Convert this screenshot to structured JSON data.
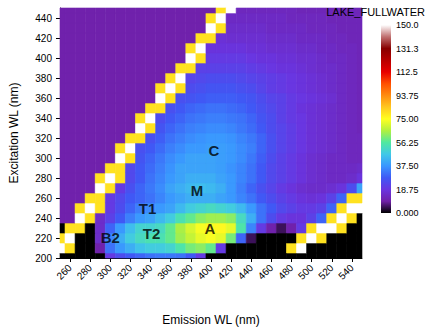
{
  "chart_data": {
    "type": "heatmap",
    "title": "LAKE_FULLWATER",
    "x_label": "Emission WL (nm)",
    "y_label": "Excitation WL (nm)",
    "xlim": [
      250,
      550
    ],
    "ylim": [
      200,
      450
    ],
    "xticks": [
      260,
      280,
      300,
      320,
      340,
      360,
      380,
      400,
      420,
      440,
      460,
      480,
      500,
      520,
      540
    ],
    "yticks": [
      200,
      220,
      240,
      260,
      280,
      300,
      320,
      340,
      360,
      380,
      400,
      420,
      440
    ],
    "x": [
      250,
      260,
      270,
      280,
      290,
      300,
      310,
      320,
      330,
      340,
      350,
      360,
      370,
      380,
      390,
      400,
      410,
      420,
      430,
      440,
      450,
      460,
      470,
      480,
      490,
      500,
      510,
      520,
      530,
      540,
      550
    ],
    "y": [
      200,
      210,
      220,
      230,
      240,
      250,
      260,
      270,
      280,
      290,
      300,
      310,
      320,
      330,
      340,
      350,
      360,
      370,
      380,
      390,
      400,
      410,
      420,
      430,
      440,
      450
    ],
    "values": [
      [
        0,
        0,
        0,
        0,
        0,
        20,
        25,
        28,
        30,
        32,
        33,
        33,
        32,
        28,
        20,
        0,
        0,
        0,
        0,
        0,
        0,
        0,
        0,
        0,
        0,
        0,
        0,
        0,
        0,
        0,
        0
      ],
      [
        150,
        80,
        0,
        0,
        10,
        32,
        38,
        42,
        46,
        48,
        48,
        50,
        55,
        60,
        62,
        58,
        20,
        0,
        0,
        0,
        0,
        0,
        0,
        80,
        150,
        0,
        0,
        0,
        0,
        0,
        0
      ],
      [
        80,
        150,
        0,
        0,
        15,
        35,
        42,
        48,
        52,
        54,
        54,
        58,
        64,
        68,
        72,
        74,
        72,
        60,
        30,
        5,
        0,
        0,
        0,
        0,
        80,
        150,
        80,
        0,
        0,
        0,
        0
      ],
      [
        0,
        80,
        80,
        0,
        15,
        30,
        38,
        45,
        50,
        50,
        52,
        58,
        65,
        70,
        74,
        76,
        76,
        72,
        55,
        35,
        20,
        10,
        5,
        10,
        20,
        80,
        150,
        150,
        80,
        0,
        0
      ],
      [
        10,
        10,
        150,
        80,
        15,
        22,
        28,
        34,
        38,
        40,
        44,
        48,
        54,
        58,
        62,
        64,
        64,
        62,
        52,
        42,
        32,
        25,
        20,
        18,
        18,
        22,
        30,
        80,
        150,
        80,
        0
      ],
      [
        10,
        10,
        80,
        150,
        80,
        20,
        25,
        30,
        34,
        36,
        38,
        40,
        44,
        48,
        50,
        52,
        50,
        48,
        44,
        38,
        32,
        28,
        24,
        22,
        20,
        20,
        22,
        30,
        80,
        150,
        150
      ],
      [
        10,
        10,
        10,
        80,
        80,
        20,
        24,
        28,
        30,
        32,
        35,
        38,
        40,
        42,
        42,
        42,
        40,
        38,
        35,
        32,
        28,
        25,
        22,
        20,
        18,
        17,
        18,
        22,
        30,
        80,
        80
      ],
      [
        10,
        10,
        10,
        10,
        150,
        80,
        20,
        26,
        30,
        33,
        36,
        40,
        42,
        44,
        45,
        44,
        42,
        38,
        34,
        30,
        26,
        23,
        20,
        18,
        16,
        15,
        15,
        16,
        18,
        25,
        40
      ],
      [
        10,
        10,
        10,
        10,
        80,
        150,
        80,
        24,
        28,
        32,
        35,
        38,
        40,
        42,
        42,
        42,
        40,
        38,
        35,
        32,
        28,
        24,
        22,
        20,
        18,
        16,
        15,
        14,
        14,
        15,
        18
      ],
      [
        10,
        10,
        10,
        10,
        10,
        80,
        80,
        24,
        28,
        31,
        34,
        37,
        40,
        40,
        40,
        40,
        39,
        37,
        35,
        32,
        28,
        24,
        22,
        20,
        18,
        16,
        15,
        14,
        14,
        14,
        15
      ],
      [
        10,
        10,
        10,
        10,
        10,
        10,
        150,
        80,
        27,
        30,
        33,
        36,
        38,
        40,
        40,
        40,
        39,
        38,
        36,
        33,
        29,
        25,
        22,
        20,
        18,
        16,
        15,
        14,
        14,
        13,
        13
      ],
      [
        10,
        10,
        10,
        10,
        10,
        10,
        80,
        150,
        26,
        28,
        31,
        34,
        36,
        38,
        38,
        39,
        39,
        38,
        36,
        34,
        30,
        26,
        23,
        21,
        19,
        17,
        16,
        15,
        14,
        13,
        13
      ],
      [
        10,
        10,
        10,
        10,
        10,
        10,
        10,
        80,
        80,
        26,
        29,
        32,
        34,
        36,
        37,
        38,
        38,
        37,
        35,
        33,
        30,
        26,
        23,
        21,
        19,
        17,
        16,
        15,
        14,
        13,
        13
      ],
      [
        10,
        10,
        10,
        10,
        10,
        10,
        10,
        10,
        150,
        80,
        27,
        30,
        32,
        34,
        35,
        36,
        36,
        35,
        33,
        31,
        28,
        25,
        23,
        21,
        19,
        17,
        16,
        15,
        14,
        13,
        12
      ],
      [
        10,
        10,
        10,
        10,
        10,
        10,
        10,
        10,
        80,
        150,
        25,
        28,
        30,
        32,
        33,
        34,
        34,
        33,
        32,
        30,
        27,
        25,
        22,
        20,
        19,
        17,
        16,
        15,
        14,
        13,
        12
      ],
      [
        10,
        10,
        10,
        10,
        10,
        10,
        10,
        10,
        10,
        80,
        80,
        26,
        28,
        30,
        31,
        32,
        32,
        31,
        30,
        28,
        26,
        24,
        22,
        20,
        18,
        17,
        16,
        15,
        14,
        13,
        12
      ],
      [
        10,
        10,
        10,
        10,
        10,
        10,
        10,
        10,
        10,
        10,
        150,
        80,
        26,
        27,
        28,
        29,
        29,
        29,
        28,
        27,
        25,
        23,
        22,
        20,
        19,
        18,
        17,
        16,
        14,
        13,
        12
      ],
      [
        10,
        10,
        10,
        10,
        10,
        10,
        10,
        10,
        10,
        10,
        80,
        150,
        80,
        25,
        26,
        27,
        27,
        27,
        26,
        25,
        23,
        21,
        20,
        19,
        18,
        17,
        16,
        15,
        14,
        13,
        12
      ],
      [
        10,
        10,
        10,
        10,
        10,
        10,
        10,
        10,
        10,
        10,
        10,
        80,
        150,
        23,
        24,
        25,
        25,
        25,
        24,
        23,
        22,
        21,
        20,
        19,
        18,
        17,
        16,
        15,
        14,
        13,
        12
      ],
      [
        10,
        10,
        10,
        10,
        10,
        10,
        10,
        10,
        10,
        10,
        10,
        10,
        80,
        80,
        22,
        22,
        22,
        22,
        22,
        21,
        20,
        19,
        18,
        18,
        17,
        16,
        15,
        15,
        14,
        13,
        12
      ],
      [
        10,
        10,
        10,
        10,
        10,
        10,
        10,
        10,
        10,
        10,
        10,
        10,
        10,
        150,
        80,
        20,
        20,
        20,
        20,
        19,
        18,
        18,
        17,
        17,
        16,
        16,
        15,
        14,
        14,
        13,
        12
      ],
      [
        10,
        10,
        10,
        10,
        10,
        10,
        10,
        10,
        10,
        10,
        10,
        10,
        10,
        80,
        150,
        18,
        18,
        18,
        18,
        17,
        17,
        16,
        16,
        16,
        15,
        15,
        14,
        14,
        13,
        13,
        12
      ],
      [
        10,
        10,
        10,
        10,
        10,
        10,
        10,
        10,
        10,
        10,
        10,
        10,
        10,
        10,
        80,
        80,
        17,
        16,
        16,
        16,
        16,
        15,
        15,
        15,
        14,
        14,
        14,
        13,
        13,
        12,
        12
      ],
      [
        10,
        10,
        10,
        10,
        10,
        10,
        10,
        10,
        10,
        10,
        10,
        10,
        10,
        10,
        10,
        150,
        80,
        15,
        15,
        15,
        15,
        14,
        14,
        14,
        14,
        13,
        13,
        13,
        12,
        12,
        12
      ],
      [
        10,
        10,
        10,
        10,
        10,
        10,
        10,
        10,
        10,
        10,
        10,
        10,
        10,
        10,
        10,
        80,
        150,
        14,
        14,
        14,
        14,
        14,
        14,
        13,
        13,
        13,
        13,
        12,
        12,
        12,
        12
      ],
      [
        10,
        10,
        10,
        10,
        10,
        10,
        10,
        10,
        10,
        10,
        10,
        10,
        10,
        10,
        10,
        10,
        80,
        150,
        13,
        13,
        13,
        13,
        13,
        13,
        12,
        12,
        12,
        12,
        12,
        12,
        12
      ]
    ],
    "colorbar": {
      "range": [
        0,
        150
      ],
      "ticks": [
        {
          "value": 0,
          "label": "0.000"
        },
        18.75,
        {
          "value": 37.5,
          "label": "37.50"
        },
        56.25,
        {
          "value": 75,
          "label": "75.00"
        },
        93.75,
        112.5,
        {
          "value": 131.25,
          "label": "131.3"
        },
        {
          "value": 150,
          "label": "150.0"
        }
      ]
    },
    "annotations": [
      {
        "text": "B2",
        "x": 300,
        "y": 221
      },
      {
        "text": "T2",
        "x": 341,
        "y": 225
      },
      {
        "text": "A",
        "x": 399,
        "y": 230
      },
      {
        "text": "T1",
        "x": 337,
        "y": 250
      },
      {
        "text": "M",
        "x": 386,
        "y": 268
      },
      {
        "text": "C",
        "x": 403,
        "y": 308
      }
    ]
  }
}
